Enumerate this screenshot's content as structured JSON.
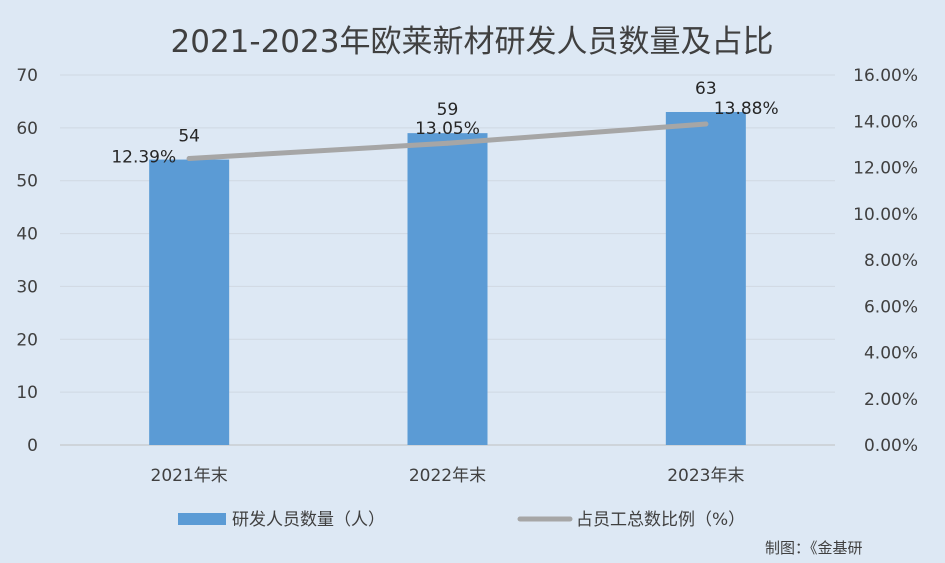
{
  "chart_data": {
    "type": "bar",
    "title": "2021-2023年欧莱新材研发人员数量及占比",
    "categories": [
      "2021年末",
      "2022年末",
      "2023年末"
    ],
    "series": [
      {
        "name": "研发人员数量（人）",
        "type": "bar",
        "axis": "left",
        "values": [
          54,
          59,
          63
        ],
        "labels": [
          "54",
          "59",
          "63"
        ],
        "color": "#5b9bd5"
      },
      {
        "name": "占员工总数比例（%）",
        "type": "line",
        "axis": "right",
        "values": [
          12.39,
          13.05,
          13.88
        ],
        "labels": [
          "12.39%",
          "13.05%",
          "13.88%"
        ],
        "color": "#a6a6a6"
      }
    ],
    "y_left": {
      "ylim": [
        0,
        70
      ],
      "ticks": [
        "0",
        "10",
        "20",
        "30",
        "40",
        "50",
        "60",
        "70"
      ]
    },
    "y_right": {
      "ylim": [
        0,
        16
      ],
      "ticks": [
        "0.00%",
        "2.00%",
        "4.00%",
        "6.00%",
        "8.00%",
        "10.00%",
        "12.00%",
        "14.00%",
        "16.00%"
      ]
    },
    "grid": true,
    "legend": "bottom"
  },
  "source_note": "制图：《金基研"
}
